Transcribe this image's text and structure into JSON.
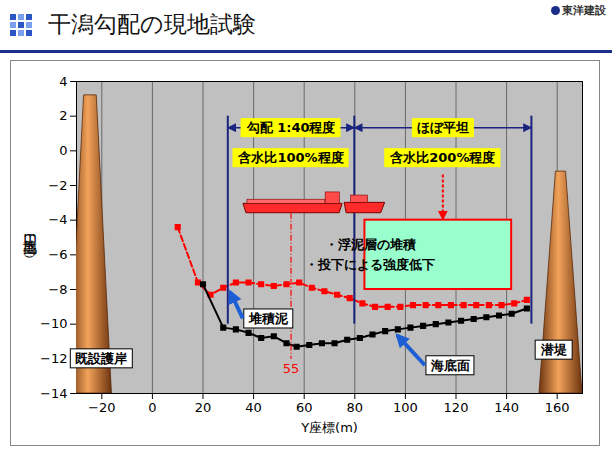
{
  "header": {
    "title": "干潟勾配の現地試験",
    "logo": "東洋建設"
  },
  "chart_data": {
    "type": "line",
    "xlabel": "Y座標(m)",
    "ylabel": "地盤高（m）",
    "xlim": [
      -30,
      170
    ],
    "ylim": [
      -14,
      4
    ],
    "xticks": [
      -20,
      0,
      20,
      40,
      60,
      80,
      100,
      120,
      140,
      160
    ],
    "yticks": [
      -14,
      -12,
      -10,
      -8,
      -6,
      -4,
      -2,
      0,
      2,
      4
    ],
    "grid": "x",
    "series": [
      {
        "name": "堆積泥",
        "color": "#ff0000",
        "marker": "square",
        "line_style": "dashed",
        "x": [
          10,
          18,
          23,
          28,
          33,
          38,
          43,
          48,
          53,
          58,
          63,
          68,
          73,
          78,
          83,
          88,
          93,
          98,
          103,
          108,
          113,
          118,
          123,
          128,
          133,
          138,
          143,
          148
        ],
        "values": [
          -4.4,
          -7.6,
          -8.3,
          -7.9,
          -7.6,
          -7.6,
          -7.7,
          -7.8,
          -7.7,
          -7.6,
          -7.9,
          -8.1,
          -8.3,
          -8.5,
          -8.8,
          -9.0,
          -9.0,
          -9.0,
          -8.9,
          -8.9,
          -8.9,
          -8.9,
          -8.9,
          -8.9,
          -8.9,
          -8.9,
          -8.8,
          -8.6
        ]
      },
      {
        "name": "海底面",
        "color": "#000000",
        "marker": "square",
        "line_style": "solid",
        "x": [
          20,
          28,
          33,
          38,
          43,
          48,
          53,
          57,
          62,
          67,
          72,
          77,
          82,
          87,
          92,
          97,
          102,
          107,
          112,
          117,
          122,
          127,
          132,
          137,
          142,
          148
        ],
        "values": [
          -7.7,
          -10.2,
          -10.3,
          -10.5,
          -10.8,
          -10.7,
          -11.1,
          -11.3,
          -11.2,
          -11.1,
          -11.1,
          -10.9,
          -10.8,
          -10.6,
          -10.4,
          -10.3,
          -10.2,
          -10.1,
          -10.0,
          -9.9,
          -9.8,
          -9.7,
          -9.6,
          -9.5,
          -9.4,
          -9.1
        ]
      }
    ],
    "line_labels": [
      {
        "text": "堆積泥",
        "x": 46,
        "y": -9.7,
        "target_x": 31,
        "target_y": -8.0
      },
      {
        "text": "海底面",
        "x": 118,
        "y": -12.4,
        "target_x": 97,
        "target_y": -10.5
      }
    ],
    "ranges": [
      {
        "from": 30,
        "to": 80,
        "top": 2,
        "bottom": -10,
        "label": "勾配 1:40程度",
        "sub_label": "含水比100%程度"
      },
      {
        "from": 80,
        "to": 150,
        "top": 2,
        "bottom": -10,
        "label": "ほぼ平坦",
        "sub_label": "含水比200%程度"
      }
    ],
    "note": {
      "lines": [
        "・浮泥層の堆積",
        "・投下による強度低下"
      ],
      "x": [
        84,
        142
      ],
      "y": [
        -8,
        -4
      ],
      "arrow_x": 115,
      "arrow_from": -1.4
    },
    "structures": [
      {
        "label": "既設護岸",
        "points": [
          [
            -33,
            -14
          ],
          [
            -27,
            3.2
          ],
          [
            -22,
            3.2
          ],
          [
            -16,
            -14
          ]
        ],
        "label_x": -20,
        "label_y": -12
      },
      {
        "label": "潜堤",
        "points": [
          [
            153,
            -14
          ],
          [
            159.5,
            -1.2
          ],
          [
            163.5,
            -1.2
          ],
          [
            170,
            -14
          ]
        ],
        "label_x": 159,
        "label_y": -11.5
      }
    ],
    "vessel": {
      "x": [
        36,
        92
      ],
      "y": [
        -3.6,
        -2.4
      ]
    },
    "section": {
      "x": 55,
      "label": "55",
      "label_y": -12.6
    }
  }
}
